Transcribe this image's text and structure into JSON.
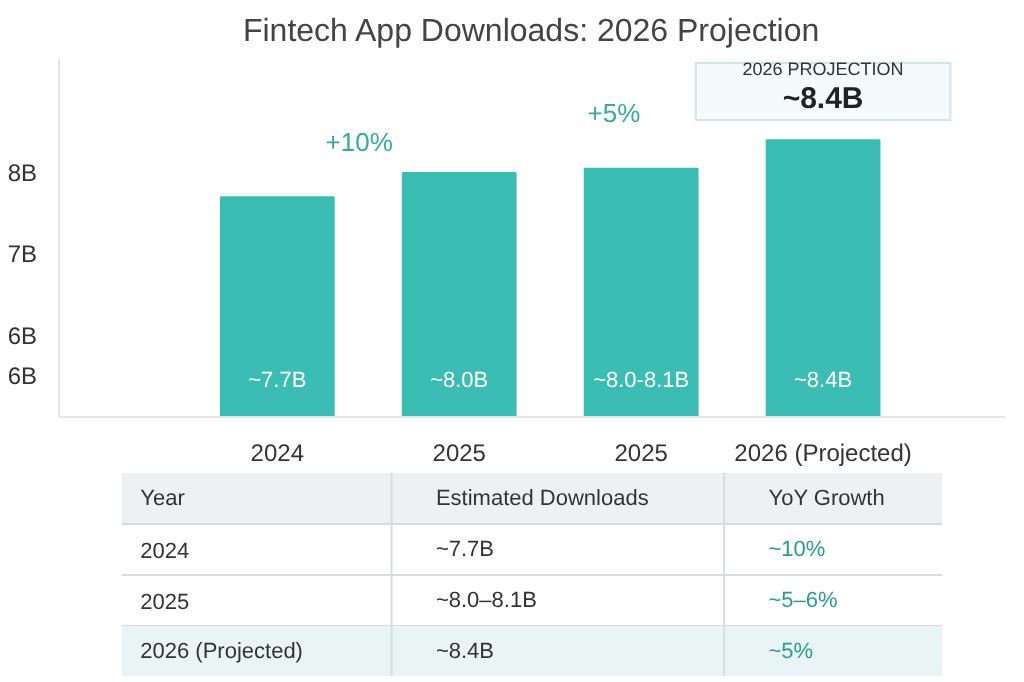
{
  "chart_data": {
    "type": "bar",
    "title": "Fintech App Downloads: 2026 Projection",
    "categories": [
      "2024",
      "2025",
      "2025",
      "2026 (Projected)"
    ],
    "values": [
      7.7,
      8.0,
      8.05,
      8.4
    ],
    "value_labels": [
      "~7.7B",
      "~8.0B",
      "~8.0-8.1B",
      "~8.4B"
    ],
    "color": "#3bbdb4",
    "ylim": [
      5.0,
      9.4
    ],
    "yticks": [
      {
        "value": 5.5,
        "label": "6B"
      },
      {
        "value": 6,
        "label": "6B"
      },
      {
        "value": 7,
        "label": "7B"
      },
      {
        "value": 8,
        "label": "8B"
      }
    ],
    "grid": false,
    "annotations": [
      "+10%",
      "+5%",
      "2026 PROJECTION",
      "~8.4B",
      "Year",
      "Estimated Downloads",
      "YoY Growth",
      "2024",
      "~7.7B",
      "~10%",
      "2025",
      "~8.0–8.1B",
      "~5–6%",
      "2026 (Projected)",
      "~8.4B",
      "~5%"
    ]
  }
}
